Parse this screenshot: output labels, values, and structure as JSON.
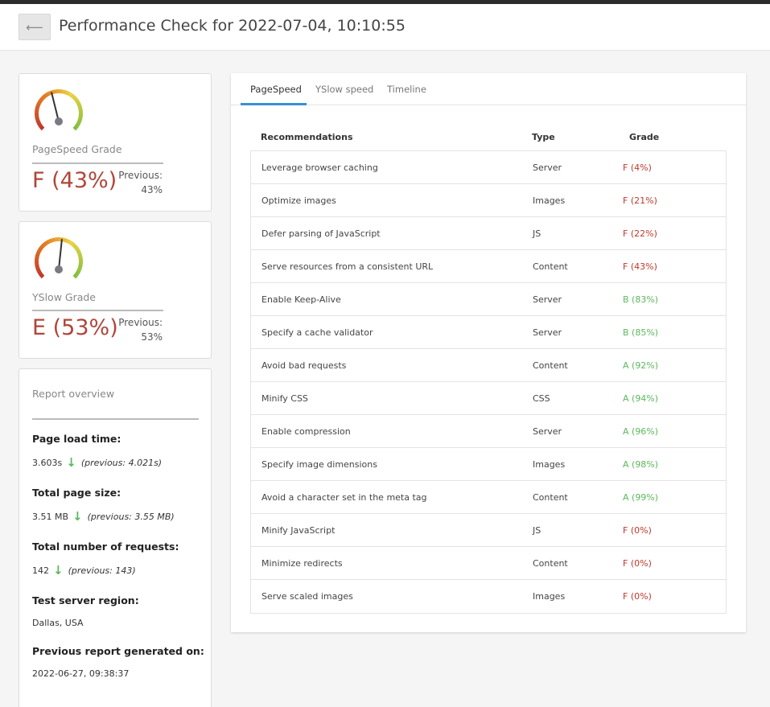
{
  "header": {
    "back_label": "⟵",
    "title": "Performance Check for 2022-07-04, 10:10:55"
  },
  "pagespeed": {
    "label": "PageSpeed Grade",
    "grade": "F (43%)",
    "previous_label": "Previous:",
    "previous_value": "43%",
    "gauge_value": 0.43
  },
  "yslow": {
    "label": "YSlow Grade",
    "grade": "E (53%)",
    "previous_label": "Previous:",
    "previous_value": "53%",
    "gauge_value": 0.53
  },
  "overview": {
    "title": "Report overview",
    "load_time_heading": "Page load time:",
    "load_time_value": "3.603s",
    "load_time_prev": "(previous: 4.021s)",
    "page_size_heading": "Total page size:",
    "page_size_value": "3.51 MB",
    "page_size_prev": "(previous: 3.55 MB)",
    "requests_heading": "Total number of requests:",
    "requests_value": "142",
    "requests_prev": "(previous: 143)",
    "region_heading": "Test server region:",
    "region_value": "Dallas, USA",
    "prev_report_heading": "Previous report generated on:",
    "prev_report_value": "2022-06-27, 09:38:37"
  },
  "tabs": [
    "PageSpeed",
    "YSlow speed",
    "Timeline"
  ],
  "table": {
    "headers": [
      "Recommendations",
      "Type",
      "Grade"
    ],
    "rows": [
      {
        "name": "Leverage browser caching",
        "type": "Server",
        "grade": "F (4%)",
        "good": false
      },
      {
        "name": "Optimize images",
        "type": "Images",
        "grade": "F (21%)",
        "good": false
      },
      {
        "name": "Defer parsing of JavaScript",
        "type": "JS",
        "grade": "F (22%)",
        "good": false
      },
      {
        "name": "Serve resources from a consistent URL",
        "type": "Content",
        "grade": "F (43%)",
        "good": false
      },
      {
        "name": "Enable Keep-Alive",
        "type": "Server",
        "grade": "B (83%)",
        "good": true
      },
      {
        "name": "Specify a cache validator",
        "type": "Server",
        "grade": "B (85%)",
        "good": true
      },
      {
        "name": "Avoid bad requests",
        "type": "Content",
        "grade": "A (92%)",
        "good": true
      },
      {
        "name": "Minify CSS",
        "type": "CSS",
        "grade": "A (94%)",
        "good": true
      },
      {
        "name": "Enable compression",
        "type": "Server",
        "grade": "A (96%)",
        "good": true
      },
      {
        "name": "Specify image dimensions",
        "type": "Images",
        "grade": "A (98%)",
        "good": true
      },
      {
        "name": "Avoid a character set in the meta tag",
        "type": "Content",
        "grade": "A (99%)",
        "good": true
      },
      {
        "name": "Minify JavaScript",
        "type": "JS",
        "grade": "F (0%)",
        "good": false
      },
      {
        "name": "Minimize redirects",
        "type": "Content",
        "grade": "F (0%)",
        "good": false
      },
      {
        "name": "Serve scaled images",
        "type": "Images",
        "grade": "F (0%)",
        "good": false
      }
    ]
  },
  "colors": {
    "bad_grade": "#c0392b",
    "good_grade": "#5cb85c",
    "accent": "#3b8fd6"
  },
  "icons": {
    "back": "back-arrow-icon",
    "down": "arrow-down-icon",
    "gauge": "gauge-icon"
  }
}
